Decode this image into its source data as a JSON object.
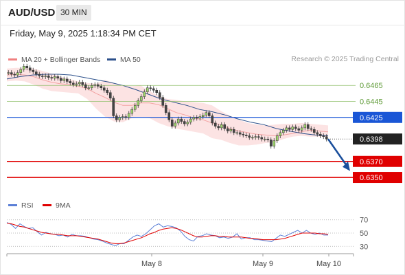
{
  "header": {
    "symbol": "AUD/USD",
    "timeframe": "30 MIN"
  },
  "datetime": "Friday, May 9, 2025 1:18:34 PM CET",
  "legend": {
    "ma20_bb": {
      "label": "MA 20 + Bollinger Bands",
      "color": "#f08080"
    },
    "ma50": {
      "label": "MA 50",
      "color": "#2b4f8a"
    }
  },
  "credit": "Research © 2025 Trading Central",
  "rsi_legend": {
    "rsi": {
      "label": "RSI",
      "color": "#5b7fd6"
    },
    "ma9": {
      "label": "9MA",
      "color": "#e00000"
    }
  },
  "chart_data": {
    "type": "candlestick",
    "price_ylim": [
      0.6338,
      0.6491
    ],
    "x_ticks": [
      "May 8",
      "May 9",
      "May 10"
    ],
    "candles_close": [
      0.6481,
      0.6479,
      0.6478,
      0.6481,
      0.6485,
      0.6489,
      0.6487,
      0.6484,
      0.6482,
      0.6479,
      0.6477,
      0.6476,
      0.6477,
      0.6475,
      0.6474,
      0.6476,
      0.6474,
      0.6471,
      0.6473,
      0.647,
      0.6468,
      0.6466,
      0.6467,
      0.6469,
      0.6466,
      0.6462,
      0.6462,
      0.6465,
      0.6466,
      0.6464,
      0.6462,
      0.6459,
      0.6456,
      0.6449,
      0.6427,
      0.6422,
      0.6425,
      0.6426,
      0.6425,
      0.643,
      0.6435,
      0.644,
      0.6446,
      0.6451,
      0.6457,
      0.6462,
      0.6461,
      0.6459,
      0.6456,
      0.645,
      0.644,
      0.6431,
      0.6422,
      0.6414,
      0.6418,
      0.6423,
      0.642,
      0.6417,
      0.6419,
      0.6423,
      0.6425,
      0.6424,
      0.6426,
      0.6428,
      0.6431,
      0.6427,
      0.6418,
      0.6414,
      0.6412,
      0.6416,
      0.6411,
      0.6408,
      0.641,
      0.6406,
      0.6406,
      0.6404,
      0.6403,
      0.6402,
      0.64,
      0.64,
      0.6401,
      0.64,
      0.6398,
      0.6398,
      0.6397,
      0.6389,
      0.6396,
      0.6402,
      0.6406,
      0.6409,
      0.6412,
      0.641,
      0.6413,
      0.6411,
      0.6409,
      0.6412,
      0.6416,
      0.6411,
      0.641,
      0.6406,
      0.6404,
      0.6402,
      0.6401,
      0.6398
    ],
    "ma20_bb": {
      "upper": [
        0.6486,
        0.6487,
        0.6487,
        0.6486,
        0.6483,
        0.648,
        0.6476,
        0.6473,
        0.647,
        0.6468,
        0.6467,
        0.6472,
        0.6468,
        0.6465,
        0.6464,
        0.6465,
        0.6458,
        0.6452,
        0.6448,
        0.6447,
        0.6445,
        0.6444,
        0.6443,
        0.644,
        0.6433,
        0.6427,
        0.6422,
        0.6418,
        0.6416,
        0.6415,
        0.6416,
        0.6417,
        0.6417,
        0.6418,
        0.6417,
        0.6416,
        0.6415
      ],
      "middle": [
        0.6478,
        0.6479,
        0.6478,
        0.6476,
        0.6472,
        0.6469,
        0.6467,
        0.6466,
        0.6464,
        0.6461,
        0.6455,
        0.645,
        0.6444,
        0.644,
        0.644,
        0.6443,
        0.6443,
        0.6441,
        0.6436,
        0.6431,
        0.6428,
        0.6424,
        0.6422,
        0.6418,
        0.6416,
        0.6411,
        0.6408,
        0.6406,
        0.6404,
        0.6403,
        0.6402,
        0.6403,
        0.6405,
        0.6407,
        0.6409,
        0.6408,
        0.6407
      ],
      "lower": [
        0.647,
        0.6471,
        0.647,
        0.6466,
        0.6461,
        0.6458,
        0.6457,
        0.6456,
        0.6455,
        0.6448,
        0.6436,
        0.6426,
        0.642,
        0.6419,
        0.6424,
        0.6425,
        0.6424,
        0.6418,
        0.6414,
        0.6411,
        0.6409,
        0.6407,
        0.6405,
        0.6399,
        0.6397,
        0.6393,
        0.639,
        0.639,
        0.6391,
        0.6393,
        0.6394,
        0.6398,
        0.6401,
        0.6402,
        0.6401,
        0.6401,
        0.6401
      ]
    },
    "ma50": [
      0.6473,
      0.6476,
      0.6478,
      0.6479,
      0.6479,
      0.6478,
      0.6475,
      0.6472,
      0.6469,
      0.6465,
      0.646,
      0.6454,
      0.6448,
      0.6444,
      0.644,
      0.6435,
      0.6432,
      0.6428,
      0.6423,
      0.6419,
      0.6416,
      0.6411,
      0.6408,
      0.6405,
      0.6403,
      0.6402
    ],
    "levels": [
      {
        "value": 0.6465,
        "label": "0.6465",
        "kind": "resistance",
        "color": "#8fbf6a"
      },
      {
        "value": 0.6445,
        "label": "0.6445",
        "kind": "resistance",
        "color": "#8fbf6a"
      },
      {
        "value": 0.6425,
        "label": "0.6425",
        "kind": "pivot",
        "color": "#1a56d6"
      },
      {
        "value": 0.6398,
        "label": "0.6398",
        "kind": "last",
        "color": "#222222"
      },
      {
        "value": 0.637,
        "label": "0.6370",
        "kind": "target",
        "color": "#e00000"
      },
      {
        "value": 0.635,
        "label": "0.6350",
        "kind": "target",
        "color": "#e00000"
      }
    ],
    "rsi": {
      "ylim": [
        22,
        78
      ],
      "ticks": [
        70,
        50,
        30
      ],
      "rsi": [
        66,
        63,
        57,
        64,
        60,
        57,
        58,
        52,
        47,
        51,
        49,
        48,
        46,
        47,
        44,
        48,
        46,
        46,
        45,
        43,
        41,
        40,
        38,
        35,
        33,
        31,
        34,
        34,
        39,
        44,
        47,
        45,
        49,
        55,
        61,
        64,
        59,
        61,
        60,
        58,
        53,
        45,
        40,
        38,
        45,
        46,
        49,
        47,
        46,
        43,
        44,
        42,
        44,
        49,
        41,
        43,
        43,
        40,
        40,
        39,
        38,
        37,
        42,
        47,
        45,
        48,
        51,
        54,
        50,
        54,
        50,
        48,
        50,
        47,
        47
      ],
      "ma9": [
        65,
        64,
        62,
        60,
        59,
        57,
        55,
        53,
        51,
        50,
        49,
        48,
        48,
        47,
        46,
        46,
        46,
        45,
        44,
        43,
        42,
        41,
        39,
        37,
        35,
        34,
        34,
        35,
        37,
        39,
        41,
        43,
        46,
        49,
        51,
        54,
        56,
        57,
        58,
        57,
        55,
        52,
        49,
        46,
        44,
        44,
        45,
        46,
        46,
        45,
        45,
        44,
        44,
        44,
        44,
        43,
        42,
        42,
        41,
        40,
        40,
        40,
        40,
        41,
        42,
        44,
        46,
        48,
        50,
        50,
        50,
        50,
        49,
        49,
        48
      ]
    },
    "forecast_arrow": {
      "from": 0.6398,
      "to": 0.6358,
      "color": "#1a4f9c"
    }
  }
}
